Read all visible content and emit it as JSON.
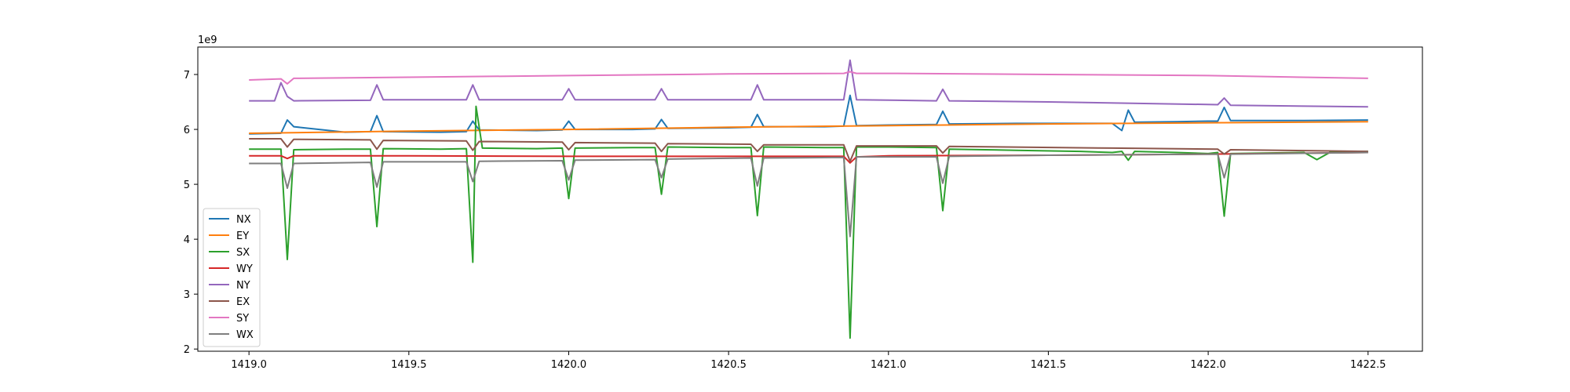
{
  "chart_data": {
    "type": "line",
    "offset_text": "1e9",
    "xlim": [
      1418.84,
      1422.67
    ],
    "ylim": [
      1.96,
      7.5
    ],
    "grid": false,
    "legend_position": "lower-left",
    "x_ticks": [
      {
        "value": 1419.0,
        "label": "1419.0"
      },
      {
        "value": 1419.5,
        "label": "1419.5"
      },
      {
        "value": 1420.0,
        "label": "1420.0"
      },
      {
        "value": 1420.5,
        "label": "1420.5"
      },
      {
        "value": 1421.0,
        "label": "1421.0"
      },
      {
        "value": 1421.5,
        "label": "1421.5"
      },
      {
        "value": 1422.0,
        "label": "1422.0"
      },
      {
        "value": 1422.5,
        "label": "1422.5"
      }
    ],
    "y_ticks": [
      {
        "value": 2,
        "label": "2"
      },
      {
        "value": 3,
        "label": "3"
      },
      {
        "value": 4,
        "label": "4"
      },
      {
        "value": 5,
        "label": "5"
      },
      {
        "value": 6,
        "label": "6"
      },
      {
        "value": 7,
        "label": "7"
      }
    ],
    "series": [
      {
        "name": "NX",
        "color": "#1f77b4",
        "x": [
          1419.0,
          1419.1,
          1419.12,
          1419.14,
          1419.3,
          1419.38,
          1419.4,
          1419.42,
          1419.6,
          1419.68,
          1419.7,
          1419.72,
          1419.9,
          1419.98,
          1420.0,
          1420.02,
          1420.2,
          1420.27,
          1420.29,
          1420.31,
          1420.5,
          1420.57,
          1420.59,
          1420.61,
          1420.8,
          1420.86,
          1420.88,
          1420.9,
          1421.0,
          1421.15,
          1421.17,
          1421.19,
          1421.4,
          1421.7,
          1421.73,
          1421.75,
          1421.77,
          1421.9,
          1422.0,
          1422.03,
          1422.05,
          1422.07,
          1422.3,
          1422.5
        ],
        "y": [
          5.92,
          5.93,
          6.17,
          6.05,
          5.95,
          5.96,
          6.25,
          5.96,
          5.95,
          5.96,
          6.15,
          5.99,
          5.98,
          5.99,
          6.15,
          6.0,
          6.0,
          6.01,
          6.18,
          6.02,
          6.03,
          6.04,
          6.27,
          6.05,
          6.05,
          6.06,
          6.62,
          6.07,
          6.08,
          6.09,
          6.33,
          6.1,
          6.11,
          6.11,
          5.98,
          6.35,
          6.13,
          6.14,
          6.15,
          6.15,
          6.4,
          6.16,
          6.16,
          6.17
        ]
      },
      {
        "name": "EY",
        "color": "#ff7f0e",
        "x": [
          1419.0,
          1419.5,
          1420.0,
          1420.5,
          1421.0,
          1421.5,
          1422.0,
          1422.5
        ],
        "y": [
          5.93,
          5.97,
          6.0,
          6.04,
          6.07,
          6.1,
          6.12,
          6.14
        ]
      },
      {
        "name": "SX",
        "color": "#2ca02c",
        "x": [
          1419.0,
          1419.1,
          1419.12,
          1419.14,
          1419.3,
          1419.38,
          1419.4,
          1419.42,
          1419.6,
          1419.68,
          1419.7,
          1419.71,
          1419.73,
          1419.9,
          1419.98,
          1420.0,
          1420.02,
          1420.2,
          1420.27,
          1420.29,
          1420.31,
          1420.5,
          1420.57,
          1420.59,
          1420.61,
          1420.8,
          1420.86,
          1420.88,
          1420.9,
          1421.0,
          1421.15,
          1421.17,
          1421.19,
          1421.4,
          1421.6,
          1421.7,
          1421.73,
          1421.75,
          1421.77,
          1421.9,
          1422.0,
          1422.03,
          1422.05,
          1422.07,
          1422.3,
          1422.34,
          1422.38,
          1422.5
        ],
        "y": [
          5.64,
          5.64,
          3.63,
          5.63,
          5.64,
          5.64,
          4.23,
          5.65,
          5.64,
          5.65,
          3.58,
          6.42,
          5.66,
          5.65,
          5.66,
          4.74,
          5.66,
          5.67,
          5.67,
          4.82,
          5.68,
          5.67,
          5.67,
          4.43,
          5.68,
          5.67,
          5.67,
          2.2,
          5.68,
          5.68,
          5.67,
          4.52,
          5.64,
          5.62,
          5.6,
          5.58,
          5.6,
          5.44,
          5.6,
          5.58,
          5.56,
          5.58,
          4.42,
          5.56,
          5.58,
          5.45,
          5.58,
          5.6
        ]
      },
      {
        "name": "WY",
        "color": "#d62728",
        "x": [
          1419.0,
          1419.1,
          1419.12,
          1419.14,
          1419.5,
          1420.0,
          1420.5,
          1420.86,
          1420.88,
          1420.9,
          1421.0,
          1421.5,
          1422.0,
          1422.5
        ],
        "y": [
          5.52,
          5.52,
          5.47,
          5.52,
          5.52,
          5.51,
          5.51,
          5.51,
          5.39,
          5.5,
          5.52,
          5.53,
          5.55,
          5.58
        ]
      },
      {
        "name": "NY",
        "color": "#9467bd",
        "x": [
          1419.0,
          1419.08,
          1419.1,
          1419.12,
          1419.14,
          1419.38,
          1419.4,
          1419.42,
          1419.68,
          1419.7,
          1419.72,
          1419.98,
          1420.0,
          1420.02,
          1420.27,
          1420.29,
          1420.31,
          1420.57,
          1420.59,
          1420.61,
          1420.86,
          1420.88,
          1420.9,
          1421.15,
          1421.17,
          1421.19,
          1421.5,
          1422.03,
          1422.05,
          1422.07,
          1422.5
        ],
        "y": [
          6.52,
          6.52,
          6.85,
          6.6,
          6.52,
          6.53,
          6.81,
          6.54,
          6.54,
          6.81,
          6.54,
          6.54,
          6.74,
          6.54,
          6.54,
          6.74,
          6.54,
          6.54,
          6.81,
          6.54,
          6.54,
          7.26,
          6.54,
          6.52,
          6.73,
          6.52,
          6.5,
          6.45,
          6.57,
          6.44,
          6.41
        ]
      },
      {
        "name": "EX",
        "color": "#8c564b",
        "x": [
          1419.0,
          1419.1,
          1419.12,
          1419.14,
          1419.38,
          1419.4,
          1419.42,
          1419.68,
          1419.7,
          1419.72,
          1419.98,
          1420.0,
          1420.02,
          1420.27,
          1420.29,
          1420.31,
          1420.57,
          1420.59,
          1420.61,
          1420.86,
          1420.88,
          1420.9,
          1421.15,
          1421.17,
          1421.19,
          1421.7,
          1422.03,
          1422.05,
          1422.07,
          1422.5
        ],
        "y": [
          5.83,
          5.83,
          5.68,
          5.82,
          5.81,
          5.64,
          5.8,
          5.79,
          5.62,
          5.78,
          5.77,
          5.63,
          5.76,
          5.75,
          5.6,
          5.74,
          5.73,
          5.6,
          5.72,
          5.72,
          5.42,
          5.7,
          5.7,
          5.57,
          5.69,
          5.66,
          5.64,
          5.55,
          5.63,
          5.6
        ]
      },
      {
        "name": "SY",
        "color": "#e377c2",
        "x": [
          1419.0,
          1419.1,
          1419.12,
          1419.14,
          1419.5,
          1420.0,
          1420.5,
          1420.86,
          1420.88,
          1420.9,
          1421.0,
          1421.5,
          1422.0,
          1422.5
        ],
        "y": [
          6.9,
          6.92,
          6.83,
          6.93,
          6.95,
          6.98,
          7.01,
          7.02,
          7.05,
          7.02,
          7.02,
          7.0,
          6.98,
          6.93
        ]
      },
      {
        "name": "WX",
        "color": "#7f7f7f",
        "x": [
          1419.0,
          1419.1,
          1419.12,
          1419.14,
          1419.38,
          1419.4,
          1419.42,
          1419.68,
          1419.7,
          1419.72,
          1419.98,
          1420.0,
          1420.02,
          1420.27,
          1420.29,
          1420.31,
          1420.57,
          1420.59,
          1420.61,
          1420.86,
          1420.88,
          1420.9,
          1421.15,
          1421.17,
          1421.19,
          1421.5,
          1422.03,
          1422.05,
          1422.07,
          1422.5
        ],
        "y": [
          5.38,
          5.38,
          4.93,
          5.38,
          5.4,
          4.95,
          5.41,
          5.41,
          5.05,
          5.42,
          5.43,
          5.08,
          5.44,
          5.45,
          5.12,
          5.46,
          5.48,
          4.97,
          5.48,
          5.49,
          4.05,
          5.5,
          5.5,
          5.02,
          5.51,
          5.53,
          5.55,
          5.12,
          5.55,
          5.58
        ]
      }
    ]
  }
}
